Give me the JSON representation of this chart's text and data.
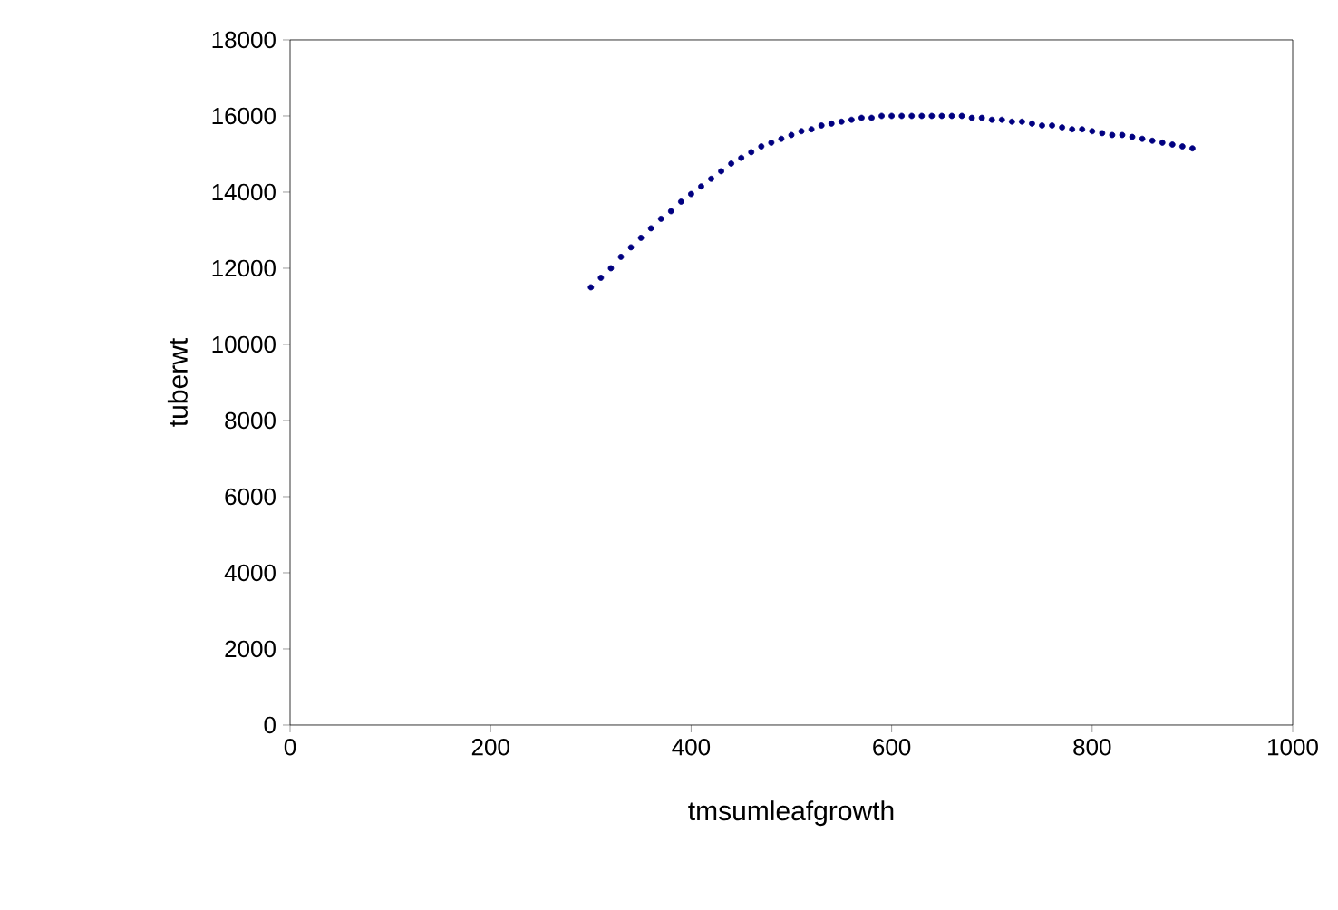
{
  "chart_data": {
    "type": "scatter",
    "xlabel": "tmsumleafgrowth",
    "ylabel": "tuberwt",
    "x": [
      300,
      310,
      320,
      330,
      340,
      350,
      360,
      370,
      380,
      390,
      400,
      410,
      420,
      430,
      440,
      450,
      460,
      470,
      480,
      490,
      500,
      510,
      520,
      530,
      540,
      550,
      560,
      570,
      580,
      590,
      600,
      610,
      620,
      630,
      640,
      650,
      660,
      670,
      680,
      690,
      700,
      710,
      720,
      730,
      740,
      750,
      760,
      770,
      780,
      790,
      800,
      810,
      820,
      830,
      840,
      850,
      860,
      870,
      880,
      890,
      900
    ],
    "values": [
      11500,
      11750,
      12000,
      12300,
      12550,
      12800,
      13050,
      13300,
      13500,
      13750,
      13950,
      14150,
      14350,
      14550,
      14750,
      14900,
      15050,
      15200,
      15300,
      15400,
      15500,
      15600,
      15650,
      15750,
      15800,
      15850,
      15900,
      15950,
      15950,
      16000,
      16000,
      16000,
      16000,
      16000,
      16000,
      16000,
      16000,
      16000,
      15950,
      15950,
      15900,
      15900,
      15850,
      15850,
      15800,
      15750,
      15750,
      15700,
      15650,
      15650,
      15600,
      15550,
      15500,
      15500,
      15450,
      15400,
      15350,
      15300,
      15250,
      15200,
      15150
    ],
    "color": "#000080",
    "marker": "circle",
    "xlim": [
      0,
      1000
    ],
    "xticks": [
      0,
      200,
      400,
      600,
      800,
      1000
    ],
    "ylim": [
      0,
      18000
    ],
    "yticks": [
      0,
      2000,
      4000,
      6000,
      8000,
      10000,
      12000,
      14000,
      16000,
      18000
    ],
    "grid": false
  }
}
